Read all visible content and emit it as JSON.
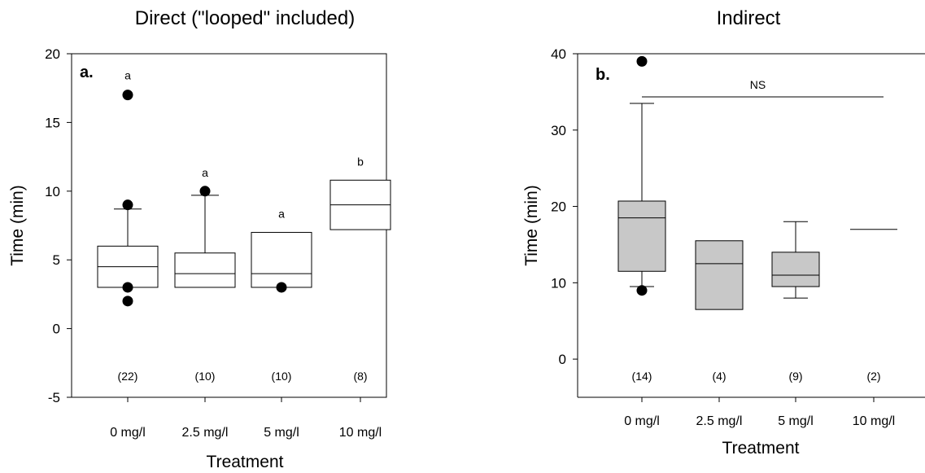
{
  "chart_data": [
    {
      "type": "box",
      "title": "Direct (\"looped\" included)",
      "panel_label": "a.",
      "xlabel": "Treatment",
      "ylabel": "Time (min)",
      "ylim": [
        -5,
        20
      ],
      "yticks": [
        "-5",
        "0",
        "5",
        "10",
        "15",
        "20"
      ],
      "categories": [
        "0 mg/l",
        "2.5 mg/l",
        "5 mg/l",
        "10 mg/l"
      ],
      "sample_sizes": [
        "(22)",
        "(10)",
        "(10)",
        "(8)"
      ],
      "significance_letters": [
        "a",
        "a",
        "a",
        "b"
      ],
      "box_fill": "#ffffff",
      "boxes": [
        {
          "whisker_low": 3,
          "q1": 3,
          "median": 4.5,
          "q3": 6,
          "whisker_high": 8.7,
          "outliers": [
            17,
            9,
            3,
            2
          ]
        },
        {
          "whisker_low": 3,
          "q1": 3,
          "median": 4,
          "q3": 5.5,
          "whisker_high": 9.7,
          "outliers": [
            10
          ]
        },
        {
          "whisker_low": 3,
          "q1": 3,
          "median": 4,
          "q3": 7,
          "whisker_high": 7,
          "outliers": [
            3
          ]
        },
        {
          "whisker_low": 7.2,
          "q1": 7.2,
          "median": 9,
          "q3": 10.8,
          "whisker_high": 10.8,
          "outliers": []
        }
      ]
    },
    {
      "type": "box",
      "title": "Indirect",
      "panel_label": "b.",
      "xlabel": "Treatment",
      "ylabel": "Time (min)",
      "ylim": [
        -5,
        40
      ],
      "yticks": [
        "0",
        "10",
        "20",
        "30",
        "40"
      ],
      "categories": [
        "0 mg/l",
        "2.5 mg/l",
        "5 mg/l",
        "10 mg/l"
      ],
      "sample_sizes": [
        "(14)",
        "(4)",
        "(9)",
        "(2)"
      ],
      "significance_text": "NS",
      "box_fill": "#c8c8c8",
      "boxes": [
        {
          "whisker_low": 9.5,
          "q1": 11.5,
          "median": 18.5,
          "q3": 20.7,
          "whisker_high": 33.5,
          "outliers": [
            39,
            9
          ]
        },
        {
          "whisker_low": 6.5,
          "q1": 6.5,
          "median": 12.5,
          "q3": 15.5,
          "whisker_high": 15.5,
          "outliers": []
        },
        {
          "whisker_low": 8,
          "q1": 9.5,
          "median": 11,
          "q3": 14,
          "whisker_high": 18,
          "outliers": []
        },
        {
          "whisker_low": 17,
          "q1": 17,
          "median": 17,
          "q3": 17,
          "whisker_high": 17,
          "outliers": []
        }
      ]
    }
  ]
}
